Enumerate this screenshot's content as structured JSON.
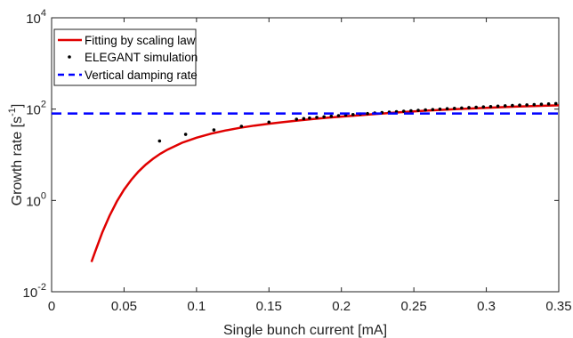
{
  "chart_data": {
    "type": "line",
    "xlabel": "Single bunch current [mA]",
    "ylabel": {
      "base": "Growth rate [s",
      "sup": "-1",
      "end": "]"
    },
    "xlim": [
      0,
      0.35
    ],
    "ylim": [
      0.01,
      10000
    ],
    "yscale": "log",
    "grid": false,
    "legend_position": "top-left",
    "xticks": [
      {
        "value": 0,
        "label": "0"
      },
      {
        "value": 0.05,
        "label": "0.05"
      },
      {
        "value": 0.1,
        "label": "0.1"
      },
      {
        "value": 0.15,
        "label": "0.15"
      },
      {
        "value": 0.2,
        "label": "0.2"
      },
      {
        "value": 0.25,
        "label": "0.25"
      },
      {
        "value": 0.3,
        "label": "0.3"
      },
      {
        "value": 0.35,
        "label": "0.35"
      }
    ],
    "yticks": [
      {
        "value": 0.01,
        "base": "10",
        "exp": "-2"
      },
      {
        "value": 1,
        "base": "10",
        "exp": "0"
      },
      {
        "value": 100,
        "base": "10",
        "exp": "2"
      },
      {
        "value": 10000,
        "base": "10",
        "exp": "4"
      }
    ],
    "series": [
      {
        "name": "Fitting by scaling law",
        "style": "line",
        "color": "#e00000",
        "x": [
          0.0275,
          0.03,
          0.035,
          0.04,
          0.045,
          0.05,
          0.055,
          0.06,
          0.065,
          0.07,
          0.075,
          0.08,
          0.09,
          0.1,
          0.11,
          0.12,
          0.13,
          0.14,
          0.15,
          0.16,
          0.17,
          0.18,
          0.19,
          0.2,
          0.22,
          0.24,
          0.26,
          0.28,
          0.3,
          0.32,
          0.35
        ],
        "y": [
          0.045,
          0.075,
          0.2,
          0.46,
          0.95,
          1.72,
          2.84,
          4.31,
          6.1,
          8.18,
          10.5,
          13.0,
          18.3,
          23.7,
          29.0,
          34.0,
          38.9,
          43.5,
          47.9,
          52.2,
          56.3,
          60.4,
          64.5,
          68.5,
          76.8,
          85.0,
          93.0,
          100.5,
          107.0,
          113.0,
          121.0
        ]
      },
      {
        "name": "ELEGANT simulation",
        "style": "markers",
        "color": "#000000",
        "x": [
          0.0745,
          0.0925,
          0.112,
          0.131,
          0.15,
          0.169,
          0.174,
          0.178,
          0.183,
          0.188,
          0.193,
          0.198,
          0.203,
          0.208,
          0.213,
          0.218,
          0.223,
          0.228,
          0.233,
          0.238,
          0.243,
          0.248,
          0.253,
          0.258,
          0.263,
          0.268,
          0.273,
          0.278,
          0.283,
          0.288,
          0.293,
          0.298,
          0.303,
          0.308,
          0.313,
          0.318,
          0.323,
          0.328,
          0.333,
          0.338,
          0.343,
          0.348
        ],
        "y": [
          20.0,
          28.0,
          35.0,
          42.0,
          52.0,
          60.0,
          62.0,
          64.0,
          66.0,
          68.0,
          70.0,
          72.0,
          74.0,
          76.0,
          78.0,
          80.0,
          82.0,
          84.0,
          86.0,
          88.0,
          90.0,
          92.0,
          94.0,
          96.0,
          98.0,
          100.0,
          102.0,
          104.0,
          106.0,
          108.0,
          110.0,
          112.0,
          114.0,
          116.0,
          118.0,
          120.0,
          122.0,
          124.0,
          126.0,
          128.0,
          130.0,
          132.0
        ]
      },
      {
        "name": "Vertical damping rate",
        "style": "dashed",
        "color": "#0000ff",
        "x": [
          0,
          0.35
        ],
        "y": [
          80,
          80
        ]
      }
    ]
  }
}
